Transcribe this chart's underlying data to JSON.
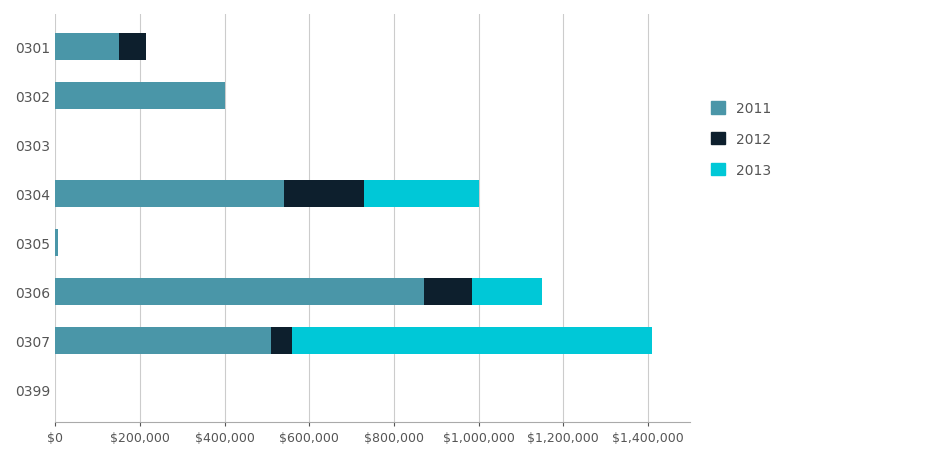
{
  "categories": [
    "0301",
    "0302",
    "0303",
    "0304",
    "0305",
    "0306",
    "0307",
    "0399"
  ],
  "series": {
    "2011": [
      150000,
      400000,
      0,
      540000,
      8000,
      870000,
      510000,
      0
    ],
    "2012": [
      65000,
      0,
      0,
      190000,
      0,
      115000,
      50000,
      0
    ],
    "2013": [
      0,
      0,
      0,
      270000,
      0,
      165000,
      850000,
      0
    ]
  },
  "colors": {
    "2011": "#4a96a8",
    "2012": "#0d1f2d",
    "2013": "#00c8d7"
  },
  "xlim": [
    0,
    1500000
  ],
  "xticks": [
    0,
    200000,
    400000,
    600000,
    800000,
    1000000,
    1200000,
    1400000
  ],
  "xtick_labels": [
    "$0",
    "$200,000",
    "$400,000",
    "$600,000",
    "$800,000",
    "$1,000,000",
    "$1,200,000",
    "$1,400,000"
  ],
  "background_color": "#ffffff",
  "legend_labels": [
    "2011",
    "2012",
    "2013"
  ],
  "bar_height": 0.55,
  "grid_color": "#cccccc",
  "spine_color": "#aaaaaa",
  "tick_color": "#555555",
  "legend_fontsize": 10,
  "axis_fontsize": 9
}
